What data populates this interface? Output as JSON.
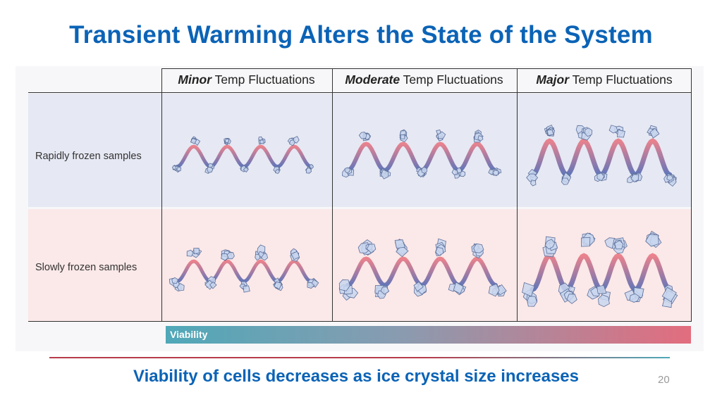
{
  "slide": {
    "title": "Transient Warming Alters the State of the System",
    "subtitle": "Viability of cells decreases as ice crystal size increases",
    "page_number": "20"
  },
  "table": {
    "columns": [
      {
        "emphasis": "Minor",
        "rest": " Temp Fluctuations",
        "crystal_scale": 0.75,
        "amplitude": 0.35
      },
      {
        "emphasis": "Moderate",
        "rest": " Temp Fluctuations",
        "crystal_scale": 1.0,
        "amplitude": 0.65
      },
      {
        "emphasis": "Major",
        "rest": " Temp Fluctuations",
        "crystal_scale": 1.2,
        "amplitude": 1.0
      }
    ],
    "rows": [
      {
        "label": "Rapidly frozen samples",
        "crystal_scale": 0.85
      },
      {
        "label": "Slowly frozen samples",
        "crystal_scale": 1.2
      }
    ]
  },
  "viability_bar": {
    "label": "Viability",
    "color_start": "#4fa8b8",
    "color_end": "#e26d7e"
  },
  "colors": {
    "title": "#0b63b6",
    "row_rapid_bg": "#e6e8f3",
    "row_slow_bg": "#fbe8e8",
    "crystal_fill": "#c9d6ee",
    "crystal_stroke": "#5b6f9a",
    "wave_warm": "#e8707c",
    "wave_cold": "#4a62b0"
  }
}
